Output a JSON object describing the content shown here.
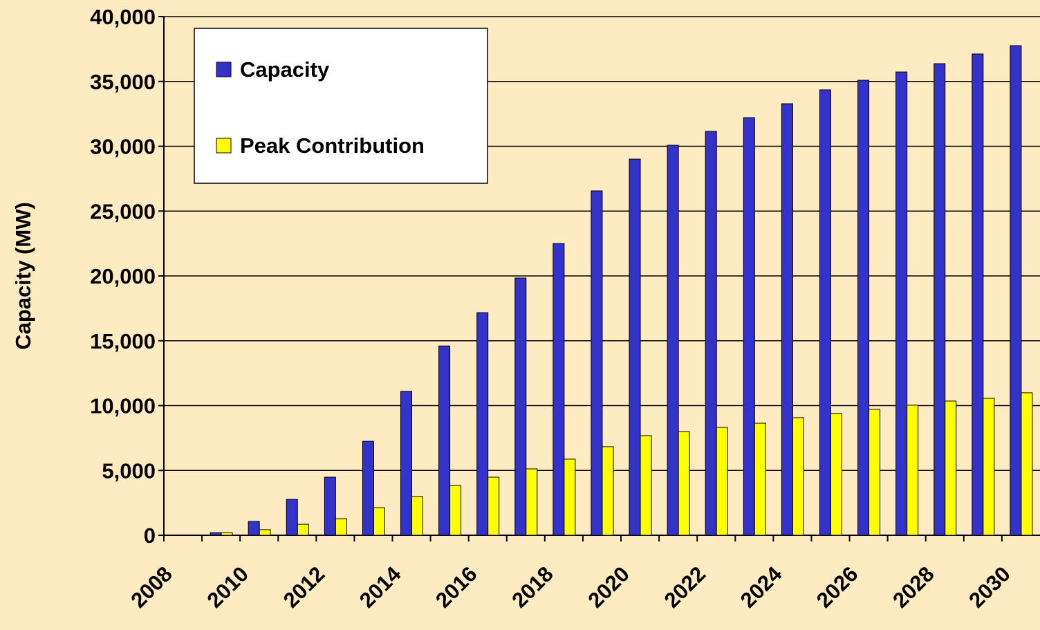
{
  "chart_data": {
    "type": "bar",
    "y_axis_label": "Capacity (MW)",
    "categories": [
      "2008",
      null,
      "2010",
      null,
      "2012",
      null,
      "2014",
      null,
      "2016",
      null,
      "2018",
      null,
      "2020",
      null,
      "2022",
      null,
      "2024",
      null,
      "2026",
      null,
      "2028",
      null,
      "2030"
    ],
    "series": [
      {
        "name": "Capacity",
        "color": "#3333cc",
        "values": [
          0,
          200,
          1070,
          2770,
          4480,
          7250,
          11100,
          14600,
          17170,
          19840,
          22500,
          26560,
          29010,
          30080,
          31150,
          32210,
          33280,
          34350,
          35090,
          35730,
          36370,
          37120,
          37760
        ]
      },
      {
        "name": "Peak Contribution",
        "color": "#ffff00",
        "values": [
          0,
          200,
          430,
          850,
          1280,
          2130,
          2990,
          3840,
          4480,
          5120,
          5870,
          6830,
          7680,
          8000,
          8320,
          8640,
          9070,
          9390,
          9710,
          10030,
          10350,
          10560,
          10990
        ]
      }
    ],
    "ylim": [
      0,
      40000
    ],
    "yticks": [
      0,
      {
        "value": 5000,
        "label": "5,000"
      },
      {
        "value": 10000,
        "label": "10,000"
      },
      {
        "value": 15000,
        "label": "15,000"
      },
      {
        "value": 20000,
        "label": "20,000"
      },
      {
        "value": 25000,
        "label": "25,000"
      },
      {
        "value": 30000,
        "label": "30,000"
      },
      {
        "value": 35000,
        "label": "35,000"
      },
      {
        "value": 40000,
        "label": "40,000"
      }
    ],
    "grid": true,
    "legend": "upper left"
  }
}
